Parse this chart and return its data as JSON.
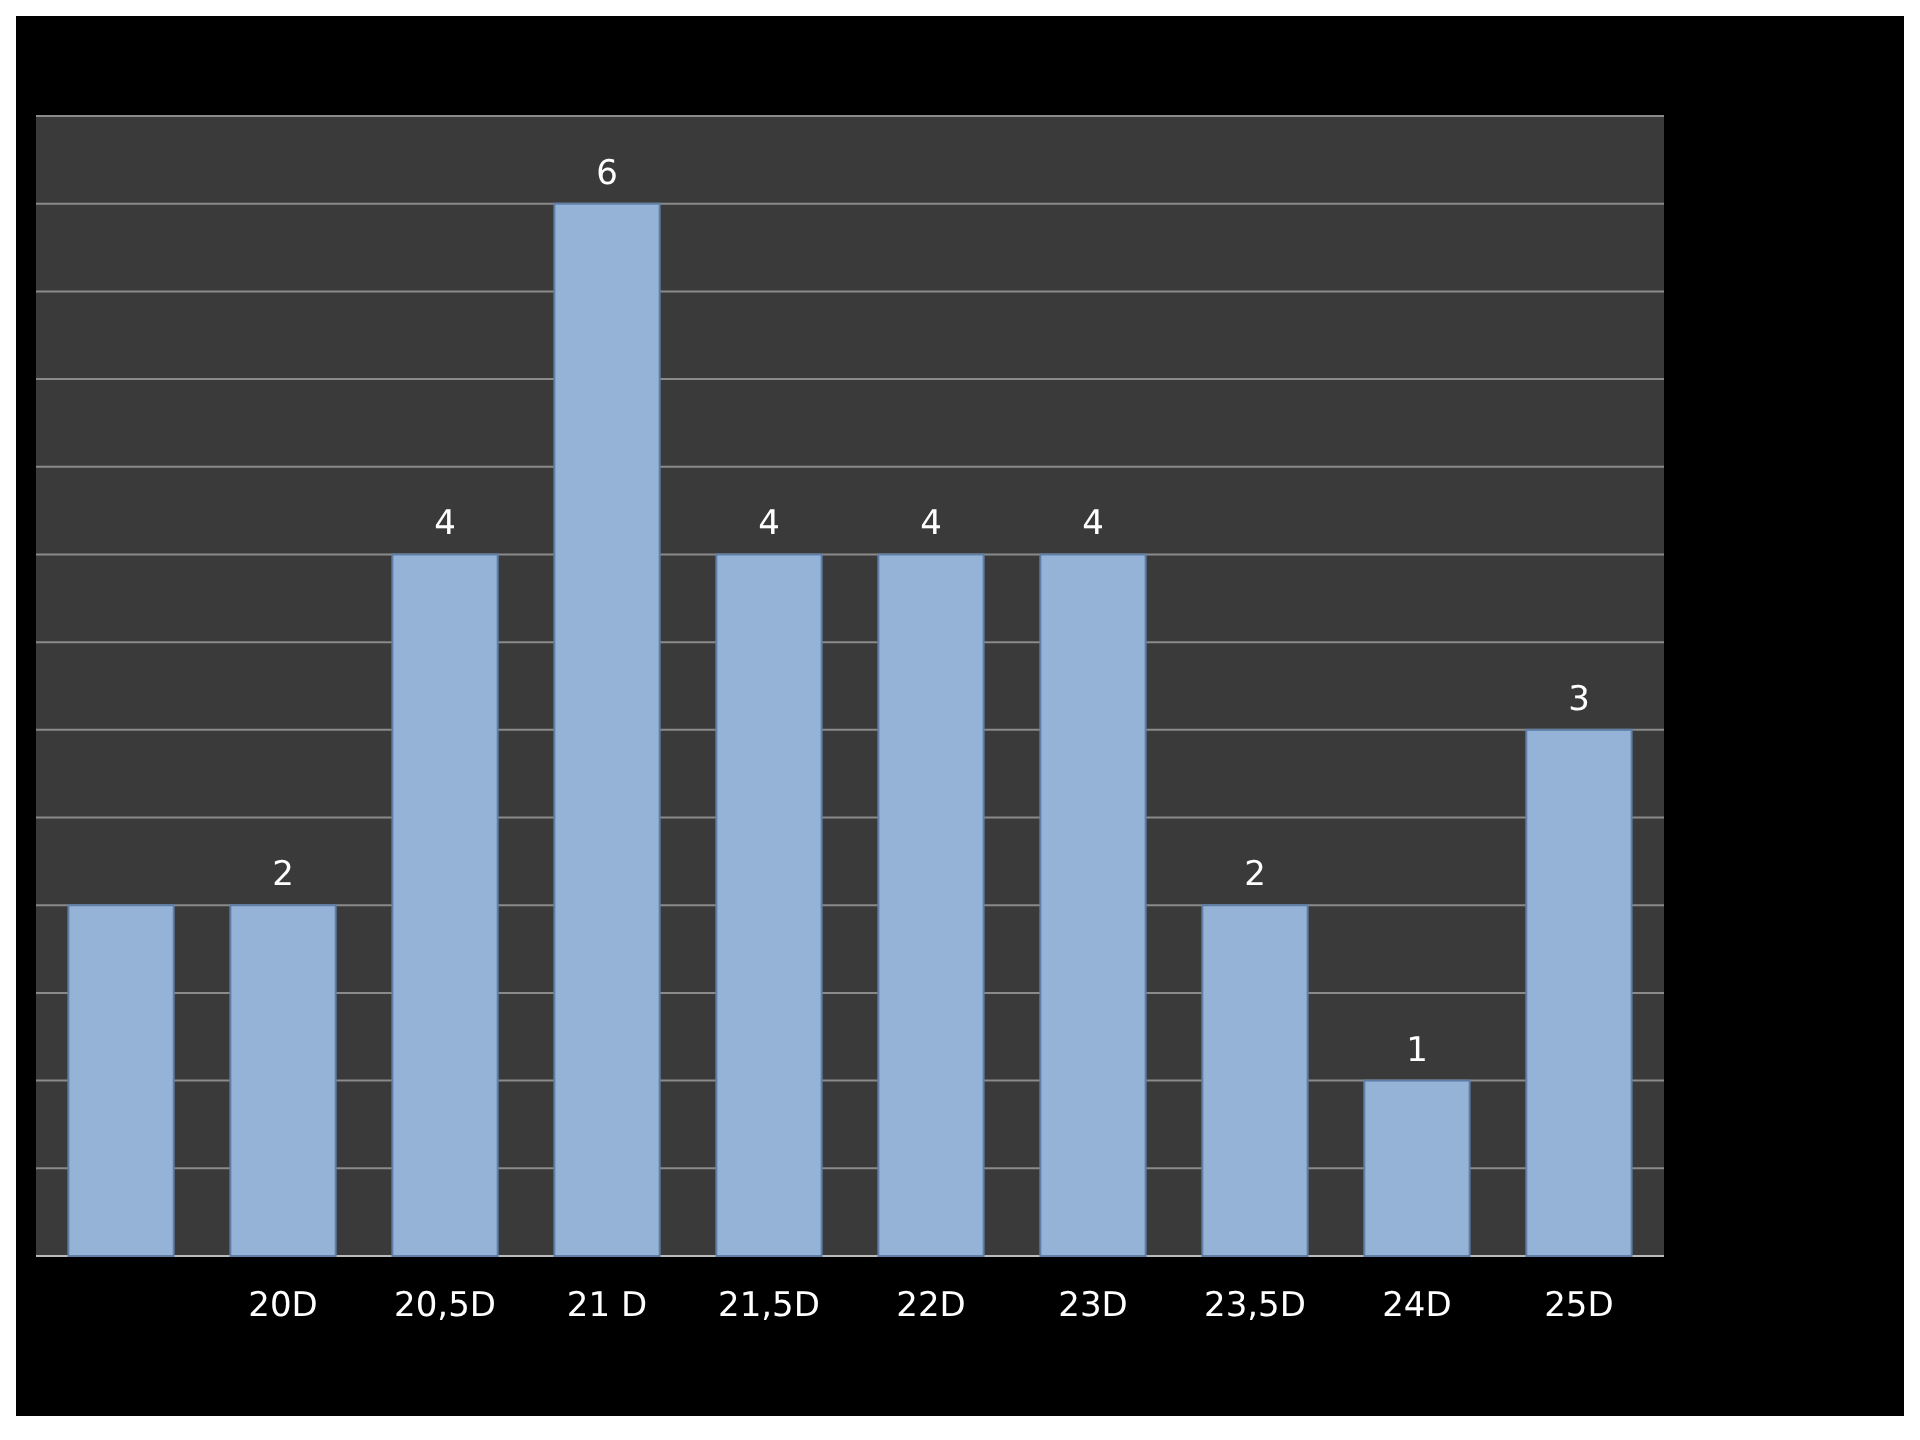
{
  "chart_data": {
    "type": "bar",
    "categories": [
      null,
      "20D",
      "20,5D",
      "21 D",
      "21,5D",
      "22D",
      "23D",
      "23,5D",
      "24D",
      "25D"
    ],
    "values": [
      2,
      2,
      4,
      6,
      4,
      4,
      4,
      2,
      1,
      3
    ],
    "value_labels": [
      null,
      "2",
      "4",
      "6",
      "4",
      "4",
      "4",
      "2",
      "1",
      "3"
    ],
    "color": "#95b3d7",
    "ylim": [
      0,
      6.5
    ],
    "yticks": [
      {
        "value": 0,
        "label": null
      },
      {
        "value": 0.5,
        "label": null
      },
      {
        "value": 1,
        "label": null
      },
      {
        "value": 1.5,
        "label": null
      },
      {
        "value": 2,
        "label": null
      },
      {
        "value": 2.5,
        "label": null
      },
      {
        "value": 3,
        "label": null
      },
      {
        "value": 3.5,
        "label": null
      },
      {
        "value": 4,
        "label": null
      },
      {
        "value": 4.5,
        "label": null
      },
      {
        "value": 5,
        "label": null
      },
      {
        "value": 5.5,
        "label": null
      },
      {
        "value": 6,
        "label": null
      },
      {
        "value": 6.5,
        "label": null
      }
    ],
    "grid": "y",
    "tick_labels": "x"
  }
}
